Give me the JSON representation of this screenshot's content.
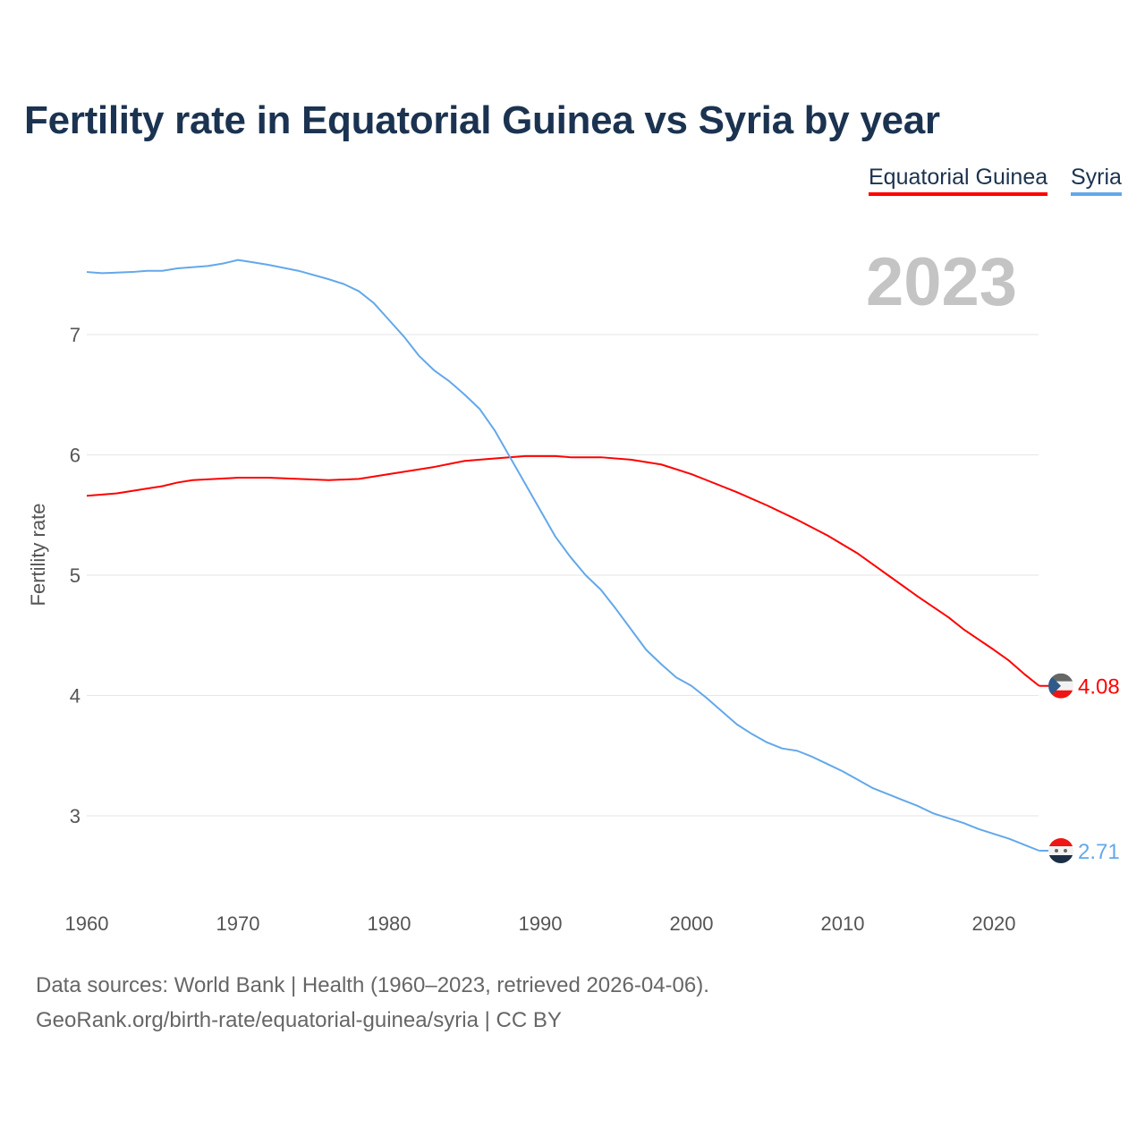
{
  "chart_data": {
    "type": "line",
    "title": "Fertility rate in Equatorial Guinea vs Syria by year",
    "xlabel": "",
    "ylabel": "Fertility rate",
    "xlim": [
      1960,
      2023
    ],
    "ylim": [
      2.5,
      7.7
    ],
    "x_ticks": [
      1960,
      1970,
      1980,
      1990,
      2000,
      2010,
      2020
    ],
    "y_ticks": [
      3,
      4,
      5,
      6,
      7
    ],
    "grid": true,
    "legend_position": "top-right",
    "current_year": "2023",
    "series": [
      {
        "name": "Equatorial Guinea",
        "color": "#ff0000",
        "end_label": "4.08",
        "points": [
          [
            1960,
            5.66
          ],
          [
            1962,
            5.68
          ],
          [
            1964,
            5.72
          ],
          [
            1965,
            5.74
          ],
          [
            1966,
            5.77
          ],
          [
            1967,
            5.79
          ],
          [
            1970,
            5.81
          ],
          [
            1972,
            5.81
          ],
          [
            1974,
            5.8
          ],
          [
            1976,
            5.79
          ],
          [
            1978,
            5.8
          ],
          [
            1980,
            5.84
          ],
          [
            1983,
            5.9
          ],
          [
            1985,
            5.95
          ],
          [
            1987,
            5.97
          ],
          [
            1989,
            5.99
          ],
          [
            1991,
            5.99
          ],
          [
            1992,
            5.98
          ],
          [
            1994,
            5.98
          ],
          [
            1996,
            5.96
          ],
          [
            1998,
            5.92
          ],
          [
            2000,
            5.84
          ],
          [
            2001,
            5.79
          ],
          [
            2003,
            5.69
          ],
          [
            2005,
            5.58
          ],
          [
            2007,
            5.46
          ],
          [
            2009,
            5.33
          ],
          [
            2011,
            5.18
          ],
          [
            2013,
            5.0
          ],
          [
            2015,
            4.82
          ],
          [
            2017,
            4.65
          ],
          [
            2018,
            4.55
          ],
          [
            2020,
            4.38
          ],
          [
            2021,
            4.29
          ],
          [
            2022,
            4.18
          ],
          [
            2023,
            4.08
          ]
        ]
      },
      {
        "name": "Syria",
        "color": "#63a8ea",
        "end_label": "2.71",
        "points": [
          [
            1960,
            7.52
          ],
          [
            1961,
            7.51
          ],
          [
            1963,
            7.52
          ],
          [
            1964,
            7.53
          ],
          [
            1965,
            7.53
          ],
          [
            1966,
            7.55
          ],
          [
            1968,
            7.57
          ],
          [
            1969,
            7.59
          ],
          [
            1970,
            7.62
          ],
          [
            1971,
            7.6
          ],
          [
            1972,
            7.58
          ],
          [
            1974,
            7.53
          ],
          [
            1976,
            7.46
          ],
          [
            1977,
            7.42
          ],
          [
            1978,
            7.36
          ],
          [
            1979,
            7.26
          ],
          [
            1980,
            7.12
          ],
          [
            1981,
            6.98
          ],
          [
            1982,
            6.82
          ],
          [
            1983,
            6.7
          ],
          [
            1984,
            6.61
          ],
          [
            1985,
            6.5
          ],
          [
            1986,
            6.38
          ],
          [
            1987,
            6.2
          ],
          [
            1988,
            5.98
          ],
          [
            1989,
            5.76
          ],
          [
            1990,
            5.54
          ],
          [
            1991,
            5.32
          ],
          [
            1992,
            5.15
          ],
          [
            1993,
            5.0
          ],
          [
            1994,
            4.88
          ],
          [
            1995,
            4.72
          ],
          [
            1996,
            4.55
          ],
          [
            1997,
            4.38
          ],
          [
            1998,
            4.26
          ],
          [
            1999,
            4.15
          ],
          [
            2000,
            4.08
          ],
          [
            2001,
            3.98
          ],
          [
            2002,
            3.87
          ],
          [
            2003,
            3.76
          ],
          [
            2004,
            3.68
          ],
          [
            2005,
            3.61
          ],
          [
            2006,
            3.56
          ],
          [
            2007,
            3.54
          ],
          [
            2008,
            3.49
          ],
          [
            2009,
            3.43
          ],
          [
            2010,
            3.37
          ],
          [
            2011,
            3.3
          ],
          [
            2012,
            3.23
          ],
          [
            2013,
            3.18
          ],
          [
            2014,
            3.13
          ],
          [
            2015,
            3.08
          ],
          [
            2016,
            3.02
          ],
          [
            2017,
            2.98
          ],
          [
            2018,
            2.94
          ],
          [
            2019,
            2.89
          ],
          [
            2020,
            2.85
          ],
          [
            2021,
            2.81
          ],
          [
            2022,
            2.76
          ],
          [
            2023,
            2.71
          ]
        ]
      }
    ]
  },
  "footer": {
    "source": "Data sources: World Bank | Health (1960–2023, retrieved 2026-04-06).",
    "credit": "GeoRank.org/birth-rate/equatorial-guinea/syria | CC BY"
  }
}
